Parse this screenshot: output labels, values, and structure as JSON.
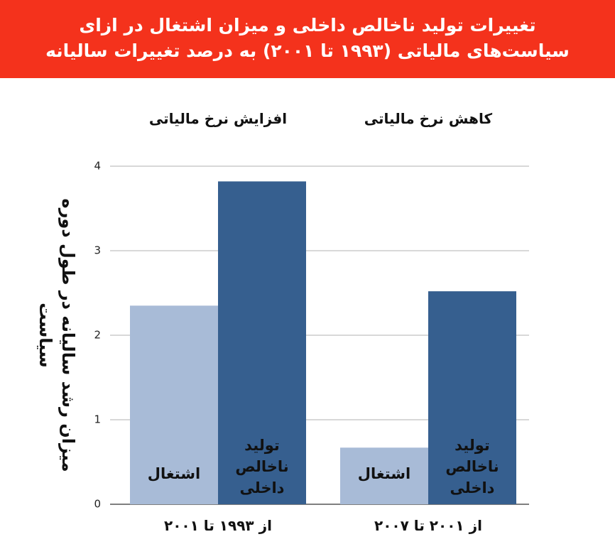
{
  "chart_data": {
    "type": "bar",
    "title": "تغییرات تولید ناخالص داخلی و میزان اشتغال در ازای سیاست‌های مالیاتی (۱۹۹۳ تا ۲۰۰۱) به درصد تغییرات سالیانه",
    "y_label": "میزان رشد سالیانه در طول دوره سیاست",
    "groups": [
      "افزایش نرخ مالیاتی",
      "کاهش نرخ مالیاتی"
    ],
    "categories": [
      "از ۱۹۹۳ تا ۲۰۰۱",
      "از ۲۰۰۱ تا ۲۰۰۷"
    ],
    "series": [
      {
        "name": "اشتغال",
        "color": "#a8bbd7",
        "values": [
          2.35,
          0.67
        ]
      },
      {
        "name": "تولید ناخالص داخلی",
        "color": "#365f8f",
        "values": [
          3.82,
          2.52
        ]
      }
    ],
    "ylim": [
      0,
      4
    ],
    "yticks": [
      0,
      1,
      2,
      3,
      4
    ],
    "grid": true
  }
}
